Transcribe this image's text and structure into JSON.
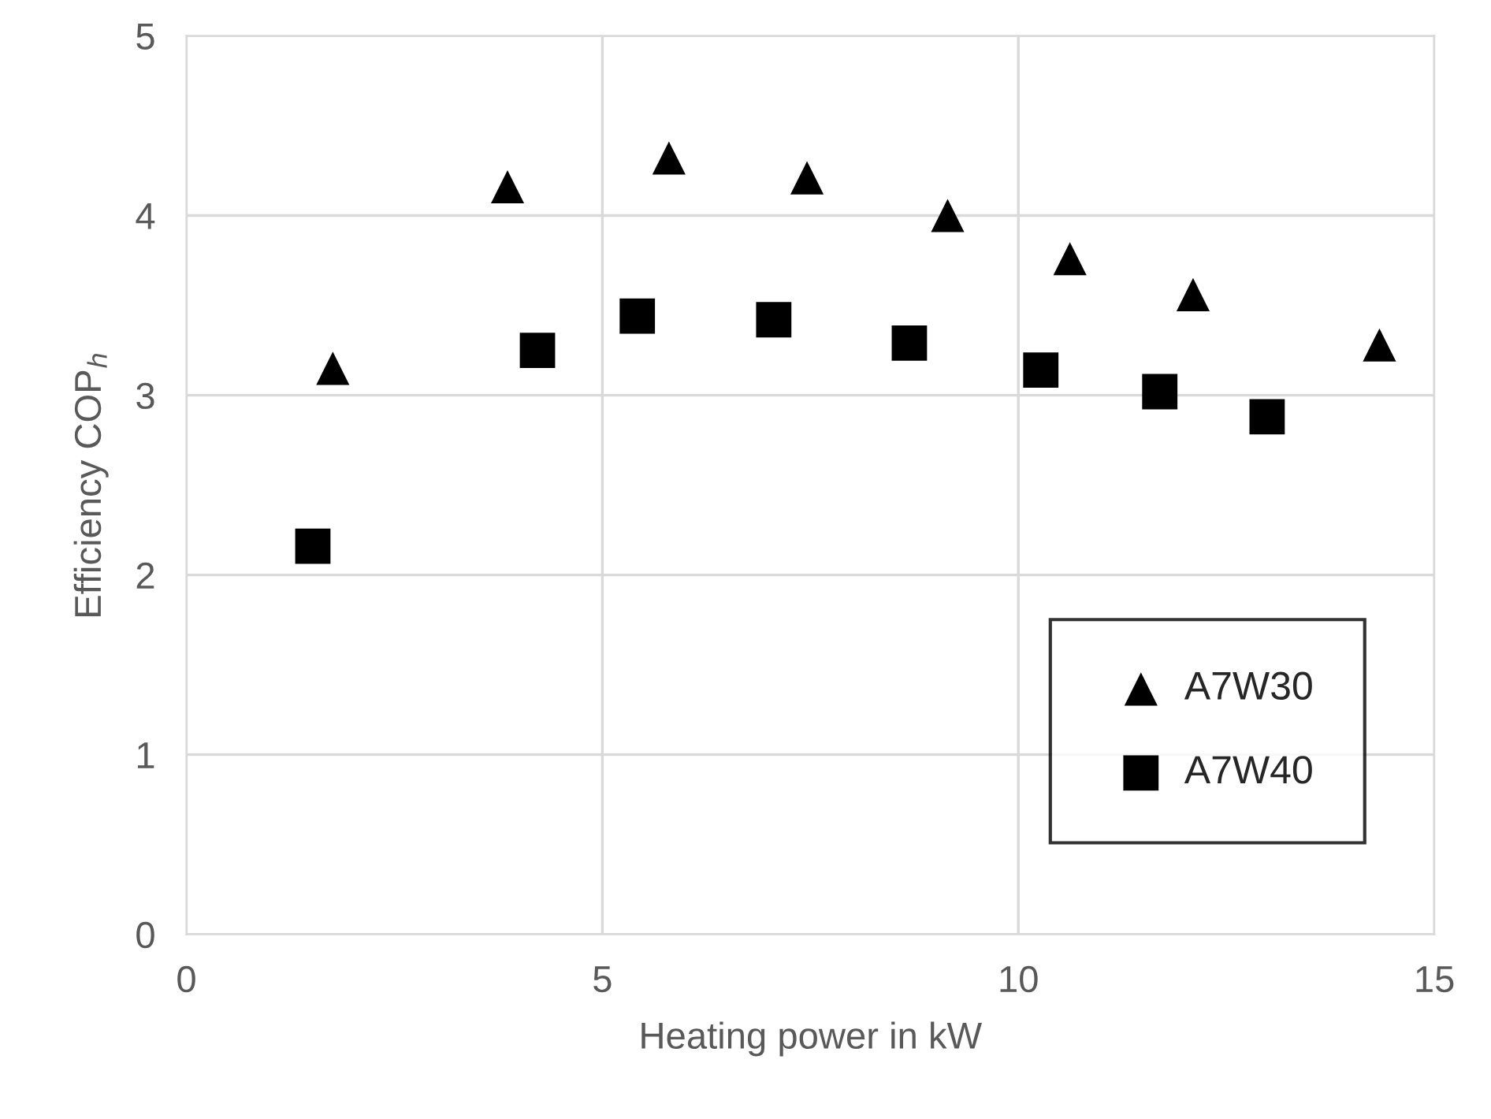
{
  "chart_data": {
    "type": "scatter",
    "xlabel": "Heating power in kW",
    "ylabel": "Efficiency COP$_{h}$",
    "xlim": [
      0,
      15
    ],
    "xticks": [
      0,
      5,
      10,
      15
    ],
    "ylim": [
      0,
      5
    ],
    "yticks": [
      0,
      1,
      2,
      3,
      4,
      5
    ],
    "grid": true,
    "legend": "bottom right",
    "series": [
      {
        "name": "A7W30",
        "color": "#000000",
        "marker": "triangle",
        "x": [
          1.76,
          3.86,
          5.8,
          7.46,
          9.15,
          10.62,
          12.1,
          14.34
        ],
        "values": [
          3.15,
          4.16,
          4.32,
          4.21,
          4.0,
          3.76,
          3.56,
          3.28
        ]
      },
      {
        "name": "A7W40",
        "color": "#000000",
        "marker": "square",
        "x": [
          1.52,
          4.22,
          5.42,
          7.06,
          8.69,
          10.27,
          11.7,
          12.99
        ],
        "values": [
          2.16,
          3.25,
          3.44,
          3.42,
          3.29,
          3.14,
          3.02,
          2.88
        ]
      }
    ]
  }
}
